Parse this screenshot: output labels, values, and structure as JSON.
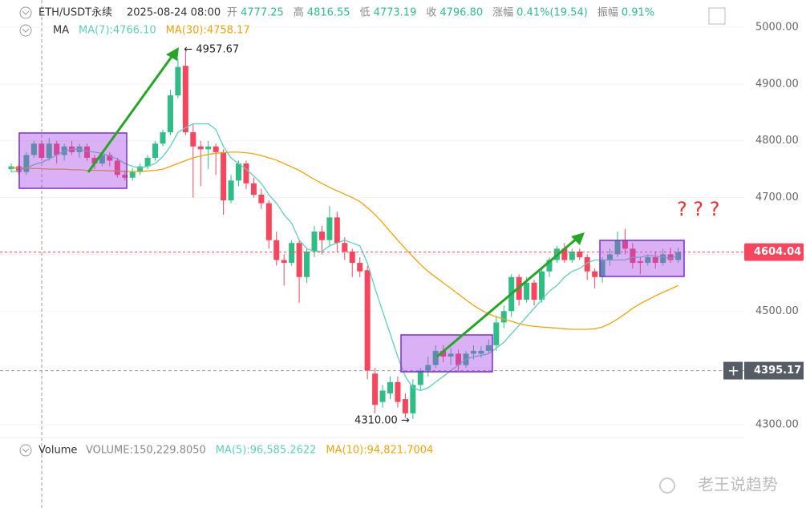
{
  "chart_data": {
    "type": "candlestick",
    "title": "ETH/USDT永续",
    "time": "2025-08-24 08:00",
    "info": [
      {
        "label": "开",
        "value": "4777.25"
      },
      {
        "label": "高",
        "value": "4816.55"
      },
      {
        "label": "低",
        "value": "4773.19"
      },
      {
        "label": "收",
        "value": "4796.80"
      },
      {
        "label": "涨幅",
        "value": "0.41%(19.54)"
      },
      {
        "label": "振幅",
        "value": "0.91%"
      }
    ],
    "ma_title": "MA",
    "up_color": "#2ebd85",
    "down_color": "#f6465d",
    "candles": {
      "open": [
        4750,
        4755,
        4745,
        4775,
        4795,
        4770,
        4795,
        4775,
        4790,
        4780,
        4790,
        4770,
        4760,
        4775,
        4765,
        4740,
        4735,
        4745,
        4755,
        4770,
        4795,
        4815,
        4880,
        4932,
        4815,
        4790,
        4785,
        4790,
        4780,
        4695,
        4730,
        4760,
        4725,
        4705,
        4690,
        4625,
        4590,
        4585,
        4620,
        4560,
        4605,
        4640,
        4625,
        4665,
        4620,
        4605,
        4585,
        4572,
        4390,
        4340,
        4355,
        4375,
        4345,
        4320,
        4370,
        4395,
        4405,
        4430,
        4420,
        4425,
        4405,
        4425,
        4425,
        4430,
        4440,
        4480,
        4500,
        4560,
        4520,
        4550,
        4520,
        4570,
        4590,
        4610,
        4590,
        4605,
        4595,
        4570,
        4560,
        4590,
        4600,
        4625,
        4610,
        4588,
        4585,
        4595,
        4585,
        4600,
        4590
      ],
      "high": [
        4760,
        4758,
        4780,
        4800,
        4800,
        4805,
        4800,
        4795,
        4800,
        4795,
        4795,
        4775,
        4780,
        4780,
        4770,
        4748,
        4752,
        4760,
        4775,
        4800,
        4820,
        4890,
        4945,
        4957.67,
        4830,
        4800,
        4800,
        4795,
        4785,
        4740,
        4765,
        4765,
        4735,
        4715,
        4695,
        4640,
        4600,
        4625,
        4625,
        4610,
        4650,
        4650,
        4685,
        4675,
        4630,
        4610,
        4595,
        4580,
        4400,
        4370,
        4385,
        4385,
        4355,
        4380,
        4400,
        4420,
        4440,
        4440,
        4435,
        4432,
        4430,
        4440,
        4438,
        4450,
        4490,
        4510,
        4565,
        4565,
        4560,
        4555,
        4575,
        4595,
        4615,
        4620,
        4610,
        4610,
        4600,
        4575,
        4595,
        4610,
        4640,
        4645,
        4620,
        4595,
        4600,
        4605,
        4610,
        4612,
        4612
      ],
      "low": [
        4745,
        4740,
        4740,
        4770,
        4765,
        4765,
        4760,
        4765,
        4775,
        4770,
        4765,
        4750,
        4755,
        4755,
        4735,
        4730,
        4730,
        4740,
        4750,
        4765,
        4790,
        4810,
        4875,
        4810,
        4700,
        4720,
        4750,
        4740,
        4670,
        4690,
        4720,
        4715,
        4700,
        4680,
        4610,
        4580,
        4545,
        4580,
        4515,
        4550,
        4595,
        4600,
        4615,
        4605,
        4590,
        4560,
        4560,
        4380,
        4320,
        4330,
        4345,
        4330,
        4312,
        4310,
        4360,
        4385,
        4400,
        4410,
        4405,
        4395,
        4400,
        4415,
        4418,
        4425,
        4430,
        4470,
        4490,
        4510,
        4515,
        4510,
        4515,
        4560,
        4585,
        4585,
        4585,
        4590,
        4555,
        4540,
        4550,
        4580,
        4595,
        4600,
        4575,
        4565,
        4580,
        4575,
        4580,
        4585,
        4585
      ],
      "close": [
        4755,
        4745,
        4775,
        4795,
        4770,
        4795,
        4775,
        4790,
        4780,
        4790,
        4770,
        4760,
        4775,
        4765,
        4740,
        4735,
        4745,
        4755,
        4770,
        4795,
        4815,
        4880,
        4930,
        4815,
        4790,
        4785,
        4790,
        4780,
        4695,
        4730,
        4760,
        4725,
        4705,
        4690,
        4625,
        4590,
        4585,
        4620,
        4560,
        4605,
        4640,
        4625,
        4665,
        4620,
        4605,
        4585,
        4570,
        4395,
        4335,
        4360,
        4375,
        4340,
        4320,
        4370,
        4395,
        4405,
        4430,
        4420,
        4425,
        4405,
        4425,
        4430,
        4430,
        4440,
        4480,
        4500,
        4560,
        4520,
        4550,
        4520,
        4570,
        4590,
        4610,
        4590,
        4605,
        4595,
        4570,
        4560,
        4590,
        4600,
        4625,
        4610,
        4585,
        4585,
        4595,
        4585,
        4600,
        4590,
        4604.04
      ]
    },
    "series": [
      {
        "name": "MA(7):4766.10",
        "color": "#5fcfb9",
        "values": [
          4745,
          4748,
          4752,
          4758,
          4762,
          4768,
          4775,
          4782,
          4785,
          4785,
          4782,
          4780,
          4778,
          4773,
          4768,
          4760,
          4755,
          4752,
          4755,
          4760,
          4772,
          4790,
          4815,
          4823,
          4830,
          4830,
          4830,
          4820,
          4790,
          4770,
          4760,
          4750,
          4738,
          4725,
          4705,
          4690,
          4670,
          4655,
          4625,
          4610,
          4605,
          4605,
          4615,
          4620,
          4625,
          4620,
          4615,
          4585,
          4540,
          4500,
          4460,
          4420,
          4385,
          4365,
          4360,
          4365,
          4375,
          4385,
          4395,
          4405,
          4415,
          4420,
          4422,
          4425,
          4435,
          4445,
          4460,
          4475,
          4490,
          4505,
          4520,
          4535,
          4545,
          4560,
          4570,
          4575,
          4585,
          4590,
          4590,
          4590,
          4590,
          4590,
          4595,
          4595,
          4598,
          4597,
          4595,
          4593,
          4598
        ]
      },
      {
        "name": "MA(30):4758.17",
        "color": "#f0a30a",
        "values": [
          4752,
          4752,
          4752,
          4751,
          4751,
          4750,
          4750,
          4750,
          4749,
          4749,
          4748,
          4748,
          4748,
          4747,
          4747,
          4746,
          4746,
          4746,
          4747,
          4748,
          4750,
          4755,
          4760,
          4765,
          4770,
          4773,
          4776,
          4778,
          4779,
          4780,
          4780,
          4779,
          4777,
          4774,
          4770,
          4766,
          4760,
          4754,
          4748,
          4740,
          4732,
          4725,
          4718,
          4712,
          4706,
          4700,
          4693,
          4682,
          4670,
          4656,
          4640,
          4625,
          4610,
          4596,
          4582,
          4570,
          4560,
          4550,
          4540,
          4530,
          4520,
          4510,
          4502,
          4495,
          4490,
          4486,
          4482,
          4478,
          4475,
          4473,
          4472,
          4471,
          4470,
          4469,
          4468,
          4468,
          4468,
          4469,
          4472,
          4478,
          4486,
          4495,
          4505,
          4513,
          4520,
          4527,
          4533,
          4539,
          4545
        ]
      }
    ],
    "ylim": [
      4270,
      5040
    ],
    "yticks": [
      {
        "value": 5000,
        "label": "5000.00"
      },
      {
        "value": 4900,
        "label": "4900.00"
      },
      {
        "value": 4800,
        "label": "4800.00"
      },
      {
        "value": 4700,
        "label": "4700.00"
      },
      {
        "value": 4600,
        "label": "4600.00"
      },
      {
        "value": 4500,
        "label": "4500.00"
      },
      {
        "value": 4400,
        "label": "4400.00"
      },
      {
        "value": 4300,
        "label": "4300.00"
      }
    ],
    "last_price": 4604.04,
    "crosshair_price": 4395.17,
    "high_label": "← 4957.67",
    "low_label": "4310.00 →",
    "question": "? ? ?",
    "volume_title": "Volume",
    "volume_info": [
      {
        "text": "VOLUME:150,229.8050",
        "color": "#888888"
      },
      {
        "text": "MA(5):96,585.2622",
        "color": "#5fcfb9"
      },
      {
        "text": "MA(10):94,821.7004",
        "color": "#f0a30a"
      }
    ],
    "watermark": "老王说趋势"
  }
}
